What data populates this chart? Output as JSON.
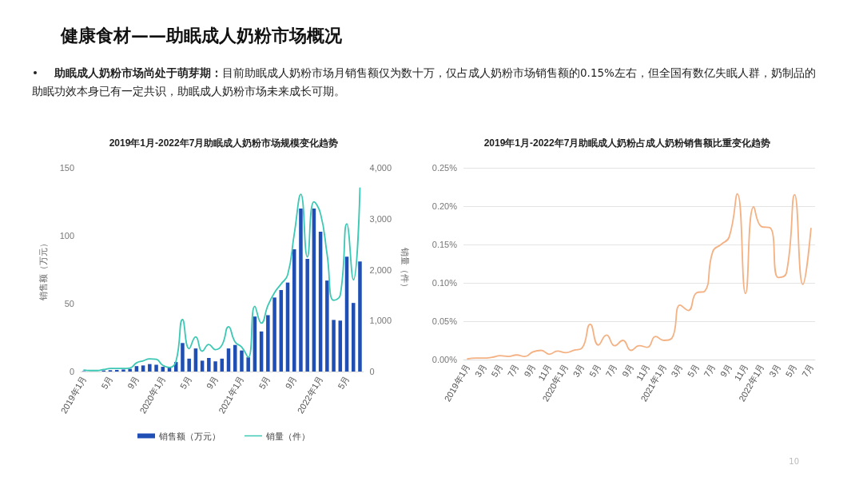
{
  "chart_data": [
    {
      "type": "other",
      "title": "健康食材——助眠成人奶粉市场概况",
      "annotations": [
        "助眠成人奶粉市场尚处于萌芽期：",
        "目前助眠成人奶粉市场月销售额仅为数十万，仅占成人奶粉市场销售额的0.15%左右，但全国有数亿失眠人群，奶制品的助眠功效本身已有一定共识，助眠成人奶粉市场未来成长可期。",
        "10"
      ]
    },
    {
      "type": "bar",
      "title": "2019年1月-2022年7月助眠成人奶粉市场规模变化趋势",
      "ylabel": "销售额（万元）",
      "y2label": "销量（件）",
      "categories": [
        "2019年1月",
        null,
        null,
        null,
        "5月",
        null,
        null,
        null,
        "9月",
        null,
        null,
        null,
        "2020年1月",
        null,
        null,
        null,
        "5月",
        null,
        null,
        null,
        "9月",
        null,
        null,
        null,
        "2021年1月",
        null,
        null,
        null,
        "5月",
        null,
        null,
        null,
        "9月",
        null,
        null,
        null,
        "2022年1月",
        null,
        null,
        null,
        "5月",
        null,
        null
      ],
      "series": [
        {
          "name": "销售额（万元）",
          "type": "bar",
          "color": "#1f4fb5",
          "values": [
            0.3,
            null,
            null,
            0.8,
            1,
            1.2,
            1.5,
            2,
            4,
            4.5,
            5.5,
            5,
            3.5,
            3.5,
            7,
            21,
            9.5,
            17,
            8,
            10,
            7.5,
            9.5,
            17,
            19.5,
            15.5,
            10.5,
            40.5,
            29.5,
            41.5,
            54.5,
            60,
            65.5,
            90,
            120,
            83,
            120,
            103,
            67,
            38,
            37.5,
            84.5,
            50.5,
            81
          ]
        },
        {
          "name": "销量（件）",
          "type": "line",
          "axis": "y2",
          "color": "#3cc8b4",
          "values": [
            30,
            20,
            20,
            40,
            60,
            60,
            60,
            70,
            170,
            210,
            250,
            240,
            120,
            80,
            200,
            1020,
            450,
            680,
            400,
            530,
            430,
            520,
            880,
            580,
            480,
            280,
            1280,
            950,
            1300,
            1550,
            1720,
            1900,
            2700,
            3480,
            2250,
            3330,
            3100,
            2300,
            1400,
            1500,
            2900,
            1800,
            3600
          ]
        }
      ],
      "ylim": [
        0,
        150
      ],
      "yticks": [
        0,
        50,
        100,
        150
      ],
      "y2lim": [
        0,
        4000
      ],
      "y2ticks": [
        0,
        {
          "value": 1000,
          "label": "1,000"
        },
        {
          "value": 2000,
          "label": "2,000"
        },
        {
          "value": 3000,
          "label": "3,000"
        },
        {
          "value": 4000,
          "label": "4,000"
        }
      ],
      "grid": false,
      "legend": "bottom",
      "marker": "none",
      "line_style": "solid"
    },
    {
      "type": "line",
      "title": "2019年1月-2022年7月助眠成人奶粉占成人奶粉销售额比重变化趋势",
      "categories": [
        "2019年1月",
        null,
        "3月",
        null,
        "5月",
        null,
        "7月",
        null,
        "9月",
        null,
        "11月",
        null,
        "2020年1月",
        null,
        "3月",
        null,
        "5月",
        null,
        "7月",
        null,
        "9月",
        null,
        "11月",
        null,
        "2021年1月",
        null,
        "3月",
        null,
        "5月",
        null,
        "7月",
        null,
        "9月",
        null,
        "11月",
        null,
        "2022年1月",
        null,
        "3月",
        null,
        "5月",
        null,
        "7月"
      ],
      "series": [
        {
          "color": "#f4b183",
          "values": [
            0.001,
            0.002,
            0.002,
            0.003,
            0.005,
            0.004,
            0.006,
            0.004,
            0.01,
            0.012,
            0.007,
            0.011,
            0.009,
            0.012,
            0.015,
            0.046,
            0.019,
            0.032,
            0.018,
            0.025,
            0.012,
            0.018,
            0.016,
            0.03,
            0.025,
            0.028,
            0.071,
            0.064,
            0.087,
            0.089,
            0.141,
            0.15,
            0.16,
            0.216,
            0.086,
            0.199,
            0.173,
            0.172,
            0.107,
            0.113,
            0.215,
            0.098,
            0.171
          ]
        }
      ],
      "ylim": [
        0,
        0.25
      ],
      "yticks": [
        {
          "value": 0,
          "label": "0.00%"
        },
        {
          "value": 0.05,
          "label": "0.05%"
        },
        {
          "value": 0.1,
          "label": "0.10%"
        },
        {
          "value": 0.15,
          "label": "0.15%"
        },
        {
          "value": 0.2,
          "label": "0.20%"
        },
        {
          "value": 0.25,
          "label": "0.25%"
        }
      ],
      "grid": "y",
      "marker": "none",
      "line_style": "solid"
    }
  ]
}
